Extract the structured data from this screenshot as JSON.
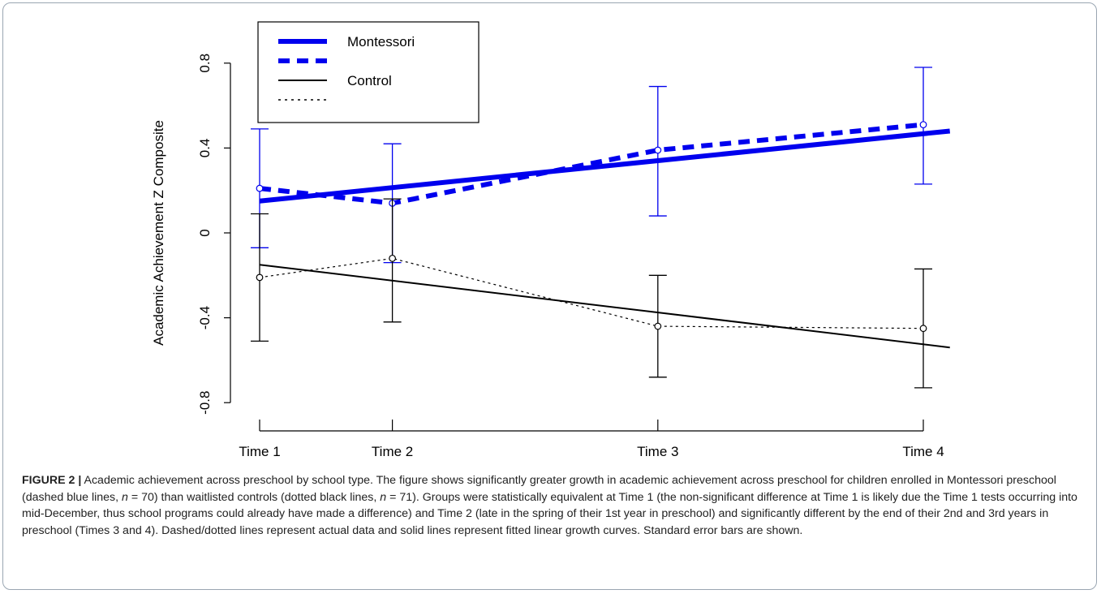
{
  "chart_data": {
    "type": "line",
    "ylabel": "Academic Achievement Z Composite",
    "xlabel": "",
    "categories": [
      "Time 1",
      "Time 2",
      "Time 3",
      "Time 4"
    ],
    "x_positions": [
      1,
      2,
      4,
      6
    ],
    "ylim": [
      -0.8,
      0.8
    ],
    "yticks": [
      "-0.8",
      "-0.4",
      "0",
      "0.4",
      "0.8"
    ],
    "ytick_values": [
      -0.8,
      -0.4,
      0,
      0.4,
      0.8
    ],
    "grid": false,
    "legend_position": "top-left",
    "legend": [
      {
        "label": "Montessori",
        "style": "solid",
        "color": "#0000ee"
      },
      {
        "label": "",
        "style": "dashed",
        "color": "#0000ee"
      },
      {
        "label": "Control",
        "style": "solid",
        "color": "#000000"
      },
      {
        "label": "",
        "style": "dotted",
        "color": "#000000"
      }
    ],
    "series": [
      {
        "name": "Montessori",
        "kind": "observed",
        "style": "dashed",
        "color": "#0000ee",
        "values": [
          0.21,
          0.14,
          0.39,
          0.51
        ],
        "error_low": [
          -0.07,
          -0.14,
          0.08,
          0.23
        ],
        "error_high": [
          0.49,
          0.42,
          0.69,
          0.78
        ]
      },
      {
        "name": "Montessori",
        "kind": "fitted",
        "style": "solid",
        "color": "#0000ee",
        "line": {
          "x0": 1,
          "y0": 0.15,
          "x1": 6.2,
          "y1": 0.48
        }
      },
      {
        "name": "Control",
        "kind": "observed",
        "style": "dotted",
        "color": "#000000",
        "values": [
          -0.21,
          -0.12,
          -0.44,
          -0.45
        ],
        "error_low": [
          -0.51,
          -0.42,
          -0.68,
          -0.73
        ],
        "error_high": [
          0.09,
          0.16,
          -0.2,
          -0.17
        ]
      },
      {
        "name": "Control",
        "kind": "fitted",
        "style": "solid",
        "color": "#000000",
        "line": {
          "x0": 1,
          "y0": -0.15,
          "x1": 6.2,
          "y1": -0.54
        }
      }
    ]
  },
  "caption": {
    "label": "FIGURE 2 |",
    "text_parts": [
      " Academic achievement across preschool by school type. The figure shows significantly greater growth in academic achievement across preschool for children enrolled in Montessori preschool (dashed blue lines, ",
      "n",
      " = 70) than waitlisted controls (dotted black lines, ",
      "n",
      " = 71). Groups were statistically equivalent at Time 1 (the non-significant difference at Time 1 is likely due the Time 1 tests occurring into mid-December, thus school programs could already have made a difference) and Time 2 (late in the spring of their 1st year in preschool) and significantly different by the end of their 2nd and 3rd years in preschool (Times 3 and 4). Dashed/dotted lines represent actual data and solid lines represent fitted linear growth curves. Standard error bars are shown."
    ]
  }
}
